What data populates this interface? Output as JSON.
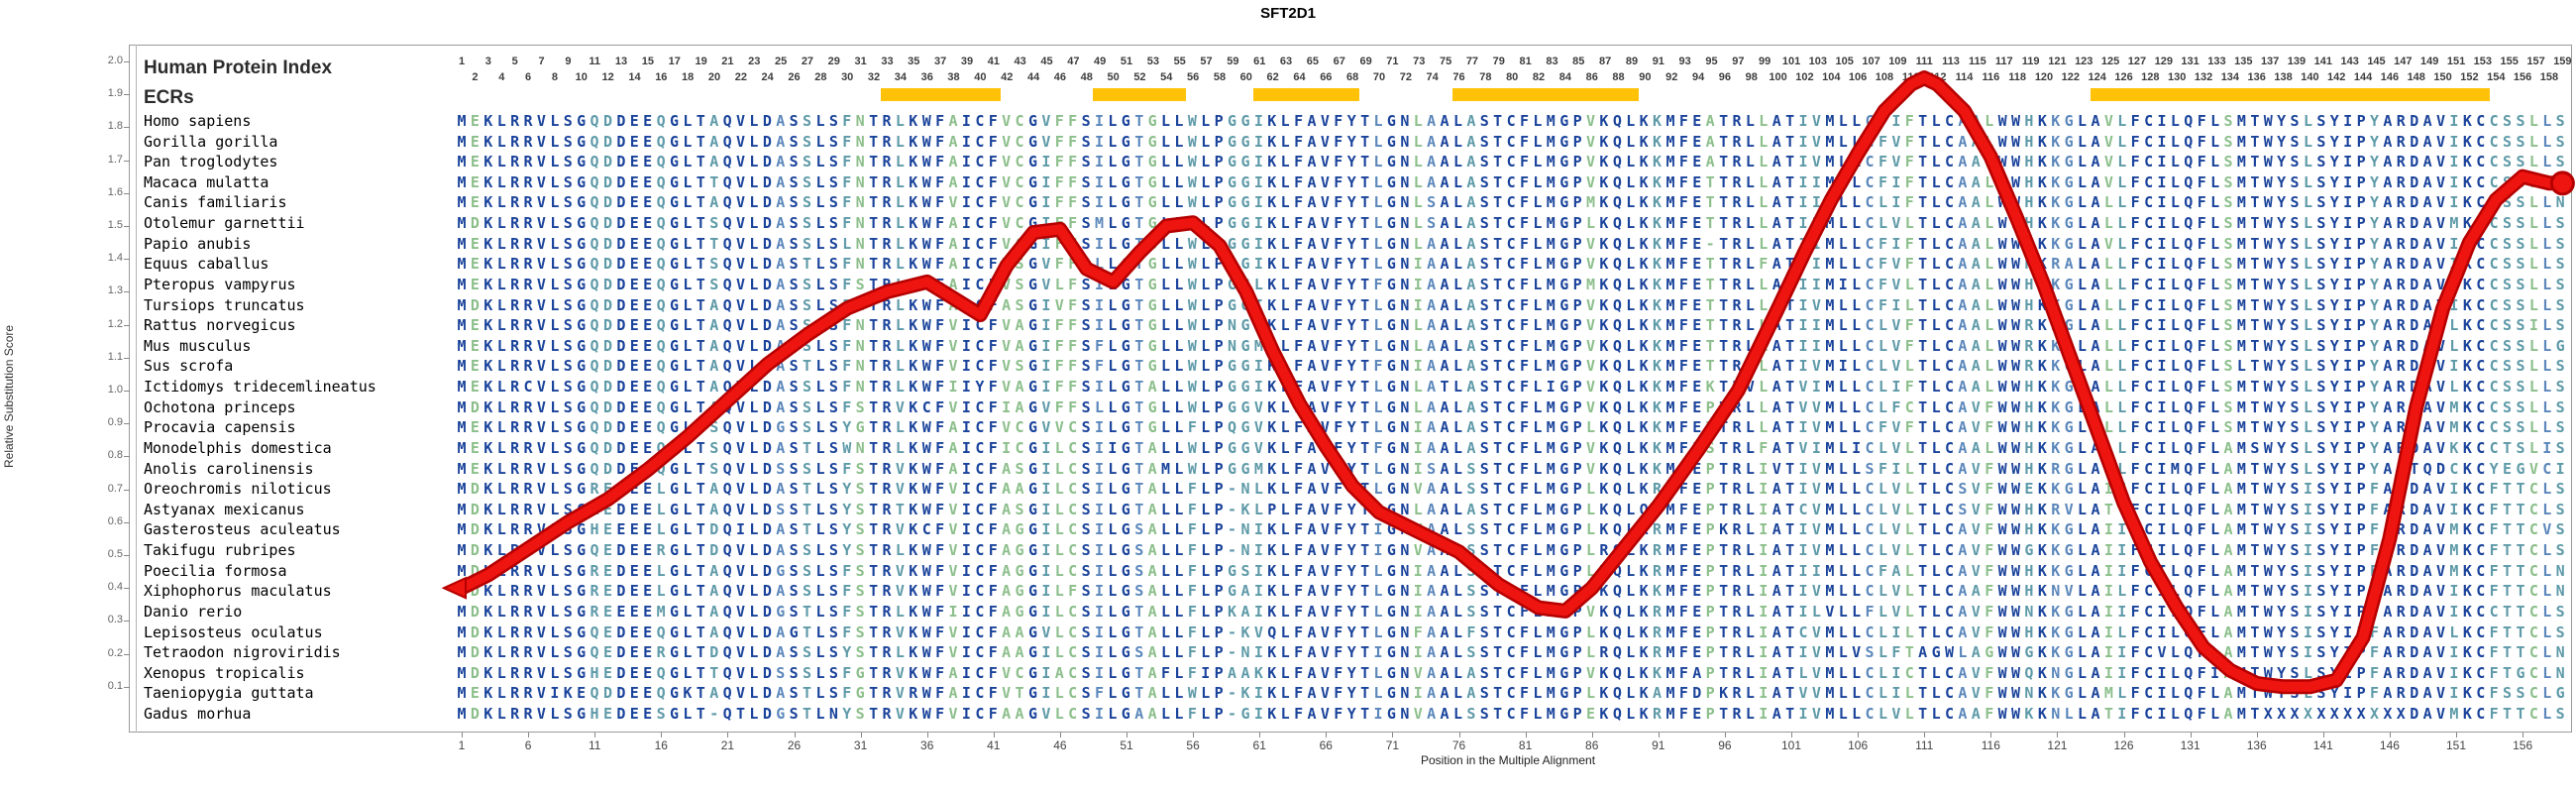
{
  "title": "SFT2D1",
  "header": {
    "protein_index_label": "Human Protein Index",
    "ecrs_label": "ECRs"
  },
  "colors": {
    "conserved_navy": "#1a439b",
    "high_steel": "#5b87bb",
    "moderate_teal": "#5e9aa8",
    "variable_green": "#8cbf8b",
    "ecr_yellow": "#FFC208",
    "curve_red": "#ee1410",
    "curve_dark_red": "#b50000"
  },
  "y_axis": {
    "label": "Relative Substitution Score",
    "ticks": [
      "2.0",
      "1.9",
      "1.8",
      "1.7",
      "1.6",
      "1.5",
      "1.4",
      "1.3",
      "1.2",
      "1.1",
      "1.0",
      "0.9",
      "0.8",
      "0.7",
      "0.6",
      "0.5",
      "0.4",
      "0.3",
      "0.2",
      "0.1"
    ]
  },
  "x_axis": {
    "label": "Position in the Multiple Alignment",
    "ticks": [
      1,
      6,
      11,
      16,
      21,
      26,
      31,
      36,
      41,
      46,
      51,
      56,
      61,
      66,
      71,
      76,
      81,
      86,
      91,
      96,
      101,
      106,
      111,
      116,
      121,
      126,
      131,
      136,
      141,
      146,
      151,
      156
    ]
  },
  "alignment": {
    "num_columns": 159,
    "ecr_bars": [
      [
        33,
        41
      ],
      [
        49,
        55
      ],
      [
        61,
        68
      ],
      [
        76,
        89
      ],
      [
        124,
        153
      ]
    ],
    "species": [
      {
        "name": "Homo sapiens",
        "sequence": "MEKLRRVLSGQDDEEQGLTAQVLDASSLSFNTRLKWFAICFVCGVFFSILGTGLLWLPGGIKLFAVFYTLGNLAALASTCFLMGPVKQLKKMFEATRLLATIVMLLCFIFTLCAALWWHKKGLAVLFCILQFLSMTWYSLSYIPYARDAVIKCCSSLLS"
      },
      {
        "name": "Gorilla gorilla",
        "sequence": "MEKLRRVLSGQDDEEQGLTAQVLDASSLSFNTRLKWFAICFVCGVFFSILGTGLLWLPGGIKLFAVFYTLGNLAALASTCFLMGPVKQLKKMFEATRLLATIVMLLCFVFTLCAALWWHKKGLAVLFCILQFLSMTWYSLSYIPYARDAVIKCCSSLLS"
      },
      {
        "name": "Pan troglodytes",
        "sequence": "MEKLRRVLSGQDDEEQGLTAQVLDASSLSFNTRLKWFAICFVCGIFFSILGTGLLWLPGGIKLFAVFYTLGNLAALASTCFLMGPVKQLKKMFEATRLLATIVMLLCFVFTLCAALWWHKKGLAVLFCILQFLSMTWYSLSYIPYARDAVIKCCSSLLS"
      },
      {
        "name": "Macaca mulatta",
        "sequence": "MEKLRRVLSGQDDEEQGLTTQVLDASSLSFNTRLKWFAICFVCGIFFSILGTGLLWLPGGIKLFAVFYTLGNLAALASTCFLMGPVKQLKKMFETTRLLATIIMLLCFIFTLCAALWWHKKGLAVLFCILQFLSMTWYSLSYIPYARDAVIKCCSSLLS"
      },
      {
        "name": "Canis familiaris",
        "sequence": "MEKLRRVLSGQDDEEQGLTAQVLDASSLSFNTRLKWFVICFVCGIFFSILGTGLLWLPGGIKLFAVFYTLGNLSALASTCFLMGPMKQLKKMFETTRLLATIIMLLCLIFTLCAALWWHKKGLALLFCILQFLSMTWYSLSYIPYARDAVIKCCSSLLN"
      },
      {
        "name": "Otolemur garnettii",
        "sequence": "MDKLRRVLSGQDDEEQGLTSQVLDASSLSFNTRLKWFAICFVCGIFFSMLGTGLLWLPGGIKLFAVFYTLGNLSALASTCFLMGPLKQLKKMFETTRLLATIIMLLCLVLTLCAALWWHKKGLALLFCILQFLSMTWYSLSYIPYARDAVMKCCSSLLS"
      },
      {
        "name": "Papio anubis",
        "sequence": "MEKLRRVLSGQDDEEQGLTTQVLDASSLSLNTRLKWFAICFVCGIFFSILGTGLLWLPGGIKLFAVFYTLGNLAALASTCFLMGPVKQLKKMFE-TRLLATIIMLLCFIFTLCAALWWHKKGLAVLFCILQFLSMTWYSLSYIPYARDAVIKCCSSLLS"
      },
      {
        "name": "Equus caballus",
        "sequence": "MEKLRRVLSGQDDEEQGLTSQVLDASTLSFNTRLKWFAICFVSGVFFSLLGTGLLWLPGGIKLFAVFYTLGNIAALASTCFLMGPVKQLKKMFETTRLFATVIMLLCFVFTLCAALWWHKRALALLFCILQFLSMTWYSLSYIPYARDAVIKCCSSLLS"
      },
      {
        "name": "Pteropus vampyrus",
        "sequence": "MEKLRRVLSGQDDEEQGLTSQVLDASSLSFSTRLRWFAICFVSGVLFSILGTGLLWLPGGLKLFAVFYTFGNIAALASTCFLMGPMKQLKKMFETTRLLATIIMILCFVLTLCAALWWHKKGLALLFCILQFLSMTWYSLSYIPYARDAVIKCCSSLLS"
      },
      {
        "name": "Tursiops truncatus",
        "sequence": "MDKLRRVLSGQDDEEQGLTAQVLDASSLSFNTRLKWFAICFASGIVFSILGTGLLWLPGGIKLFAVFYTLGNIAALASTCFLMGPVKQLKKMFETTRLLATIVMLLCFILTLCAALWWHKKGLALLFCILQFLSMTWYSLSYIPYARDAVIKCCSSLLS"
      },
      {
        "name": "Rattus norvegicus",
        "sequence": "MEKLRRVLSGQDDEEQGLTAQVLDASSLSFNTRLKWFVICFVAGIFFSILGTGLLWLPNGVKLFAVFYTLGNLAALASTCFLMGPVKQLKKMFETTRLLATIIMLLCLVFTLCAALWWRKKGLALLFCILQFLSMTWYSLSYIPYARDAVLKCCSSILS"
      },
      {
        "name": "Mus musculus",
        "sequence": "MEKLRRVLSGQDDEEQGLTAQVLDASSLSFNTRLKWFVICFVAGIFFSFLGTGLLWLPNGMKLFAVFYTLGNLAALASTCFLMGPVKQLKKMFETTRLLATIIMLLCLVFTLCAALWWRKKGLALLFCILQFLSMTWYSLSYIPYARDAVLKCCSSLLG"
      },
      {
        "name": "Sus scrofa",
        "sequence": "MEKLRRVLSGQDDEEQGLTAQVLDASTLSFNTRLKWFVICFVSGIFFSFLGTGLLWLPGGIKLFAVFYTFGNIAALASTCFLMGPVKQLKKMFETTRLLATIVMILCLVLTLCAALWWRKKGLALLFCILQFLSLTWYSLSYIPYARDAVIKCCSSLLS"
      },
      {
        "name": "Ictidomys tridecemlineatus",
        "sequence": "MEKLRCVLSGQDDEEQGLTAQVLDASSLSFNTRLKWFIIYFVAGIFFSILGTALLWLPGGIKLFAVFYTLGNLATLASTCFLIGPVKQLKKMFEKTRVLATVIMLLCLIFTLCAALWWHKKGLALLFCILQFLSMTWYSLSYIPYARDAVLKCCSSLLS"
      },
      {
        "name": "Ochotona princeps",
        "sequence": "MDKLRRVLSGQDDEEQGLTAQVLDASSLSFSTRVKCFVICFIAGVFFSLLGTGLLWLPGGVKLFAVFYTLGNLAALASTCFLMGPVKQLKKMFEPTRLLATVVMLLCLFCTLCAVFWWHKKGLALLFCILQFLSMTWYSLSYIPYARDAVMKCCSSLLS"
      },
      {
        "name": "Procavia capensis",
        "sequence": "MEKLRRVLSGQDDEEQGLTSQVLDGSSLSYGTRLKWFAICFVCGVVCSILGTGLLFLPQGVKLFAVFYTLGNIAALASTCFLMGPLKQLKKMFETTRLLATIVMLLCFVFTLCAVFWWHKKGLALLFCILQFLSMTWYSLSYIPYARDAVMKCCSSLLS"
      },
      {
        "name": "Monodelphis domestica",
        "sequence": "MEKLRRVLSGQDDEEQGLTSQVLDASTLSWNTRLKWFAICFICGILCSIIGTALLWLPGGVKLFAVFYTFGNIAALASTCFLMGPVKQLKKMFESTRLFATVIMLICLVLTLCAALWWHKKGLALLFCILQFLAMSWYSLSYIPYARDAVKKCCTSLIS"
      },
      {
        "name": "Anolis carolinensis",
        "sequence": "MEKLRRVLSGQDDEEQGLTSQVLDSSSLSFSTRVKWFAICFASGILCSILGTAMLWLPGGMKLFAVFYTLGNISALSSTCFLMGPVKQLKKMFEPTRLIVTIVMLLSFILTLCAVFWWHKRGLALLFCIMQFLAMTWYSLSYIPYARTQDCKCYEGVCI"
      },
      {
        "name": "Oreochromis niloticus",
        "sequence": "MDKLRRVLSGREDEELGLTAQVLDASTLSYSTRVKWFVICFAAGILCSILGTALLFLP-NLKLFAVFYTLGNVAALSSTCFLMGPLKQLKRMFEPTRLIATIVMLLCLVLTLCSVFWWEKKGLAIIFCILQFLAMTWYSISYIPFARDAVIKCFTTCLS"
      },
      {
        "name": "Astyanax mexicanus",
        "sequence": "MDKLRRVLSGREDEELGLTAQVLDSSTLSYSTRTKWFVICFASGILCSILGTALLFLP-KLPLFAVFYTLGNLAALASTCFLMGPLKQLQRMFEPTRLIATCVMLLCLVLTLCSVFWWHKRVLATTFCILQFLAMTWYSISYIPFARDAVIKCFTTCLS"
      },
      {
        "name": "Gasterosteus aculeatus",
        "sequence": "MDKLRRVLSGHEEEELGLTDQILDASTLSYSTRVKCFVICFAGGILCSILGSALLFLP-NIKLFAVFYTIGNVAALSSTCFLMGPLKQLKRMFEPKRLIATIVMLLCLVLTLCAVFWWHKKGLAIIFCILQFLAMTWYSISYIPFARDAVMKCFTTCVS"
      },
      {
        "name": "Takifugu rubripes",
        "sequence": "MDKLRRVLSGQEDEERGLTDQVLDASSLSYSTRLKWFVICFAGGILCSILGSALLFLP-NIKLFAVFYTIGNVAALSSTCFLMGPLRQLKRMFEPTRLIATIVMLLCLVLTLCAVFWWGKKGLAIIFCILQFLAMTWYSISYIPFARDAVMKCFTTCLS"
      },
      {
        "name": "Poecilia formosa",
        "sequence": "MDKLRRVLSGREDEELGLTAQVLDGSSLSFSTRVKWFVICFAGGILCSILGSALLFLPGSIKLFAVFYTLGNIAALSSTCFLMGPLKQLKRMFEPTRLIATIIMLLCFALTLCAVFWWHKKGLAIIFCILQFLAMTWYSISYIPFARDAVMKCFTTCLN"
      },
      {
        "name": "Xiphophorus maculatus",
        "sequence": "MDKLRRVLSGREDEELGLTAQVLDASSLSFSTRVKWFVICFAGGILFSILGSALLFLPGAIKLFAVFYTLGNIAALSSTCFLMGPLKQLKKMFEPTRLIATIVMLLCLVLTLCAAFWWHKNVLAILFCILQFLAMTWYSISYIPFARDAVIKCFTTCLN"
      },
      {
        "name": "Danio rerio",
        "sequence": "MDKLRRVLSGREEEEMGLTAQVLDGSTLSFSTRLKWFIICFAGGILCSILGTALLFLPKAIKLFAVFYTLGNIAALSSTCFLMGPVKQLKRMFEPTRLIATILVLLFLVLTLCAVFWWNKKGLAIIFCILQFLAMTWYSISYIPFARDAVIKCCTTCLS"
      },
      {
        "name": "Lepisosteus oculatus",
        "sequence": "MDKLRRVLSGQEDEEQGLTAQVLDAGTLSFSTRVKWFVICFAAGVLCSILGTALLFLP-KVQLFAVFYTLGNFAALFSTCFLMGPLKQLKRMFEPTRLIATCVMLLCLILTLCAVFWWHKKGLAILFCILQFLAMTWYSISYIPFARDAVLKCFTTCLS"
      },
      {
        "name": "Tetraodon nigroviridis",
        "sequence": "MDKLRRVLSGQEDEERGLTDQVLDASSLSYSTRLKWFVICFAAGILCSILGSALLFLP-NIKLFAVFYTIGNIAALSSTCFLMGPLRQLKRMFEPTRLIATIVMLVSLFTAGWLAGWWGKKGLAIIFCVLQFLAMTWYSISYIPFARDAVIKCFTTCLN"
      },
      {
        "name": "Xenopus tropicalis",
        "sequence": "MDKLRRVLSGHEDEEQGLTTQVLDSSSLSFGTRVKWFAICFVCGIACSILGTAFLFIPAAKKLFAVFYTLGNVAALASTCFLMGPVKQLKKMFAPTRLIATLVMLLCLICTLCAVFWWQKNGLAIIFCILQFIAMTWYSLSYIPFARDAVIKCFTGCLN"
      },
      {
        "name": "Taeniopygia guttata",
        "sequence": "MEKLRRVIKEQDDEEQGKTAQVLDASTLSFGTRVRWFAICFVTGILCSFLGTALLWLP-KIKLFAVFYTLGNIAALASTCFLMGPLKQLKAMFDPKRLIATVVMLLCLILTLCAVFWWNKKGLAMLFCILQFLAMTWYSLSYIPFARDAVIKCFSSCLG"
      },
      {
        "name": "Gadus morhua",
        "sequence": "MDKLRRVLSGHEDEESGLT-QTLDGSTLNYSTRVKWFVICFAAGVLCSILGAALLFLP-GIKLFAVFYTIGNVAALSSTCFLMGPEKQLKRMFEPTRLIATIVMLLCLVLTLCAAFWWKKNLLATIFCILQFLAMTXXXXXXXXXXXDAVMKCFTTCLS"
      }
    ]
  },
  "chart_data": {
    "type": "line",
    "title": "SFT2D1",
    "xlabel": "Position in the Multiple Alignment",
    "ylabel": "Relative Substitution Score",
    "ylim": [
      0.0,
      2.0
    ],
    "xlim": [
      1,
      159
    ],
    "grid": false,
    "legend": "none",
    "series": [
      {
        "name": "Relative Substitution Score",
        "points": [
          [
            1,
            0.4
          ],
          [
            3,
            0.44
          ],
          [
            6,
            0.52
          ],
          [
            9,
            0.6
          ],
          [
            12,
            0.67
          ],
          [
            15,
            0.76
          ],
          [
            18,
            0.86
          ],
          [
            21,
            0.97
          ],
          [
            24,
            1.08
          ],
          [
            27,
            1.17
          ],
          [
            30,
            1.25
          ],
          [
            33,
            1.3
          ],
          [
            36,
            1.33
          ],
          [
            38,
            1.28
          ],
          [
            40,
            1.23
          ],
          [
            42,
            1.38
          ],
          [
            44,
            1.48
          ],
          [
            46,
            1.49
          ],
          [
            48,
            1.37
          ],
          [
            50,
            1.33
          ],
          [
            52,
            1.42
          ],
          [
            54,
            1.5
          ],
          [
            56,
            1.51
          ],
          [
            58,
            1.44
          ],
          [
            60,
            1.3
          ],
          [
            62,
            1.12
          ],
          [
            64,
            0.96
          ],
          [
            66,
            0.83
          ],
          [
            68,
            0.71
          ],
          [
            70,
            0.63
          ],
          [
            73,
            0.57
          ],
          [
            76,
            0.51
          ],
          [
            79,
            0.41
          ],
          [
            82,
            0.34
          ],
          [
            84,
            0.33
          ],
          [
            86,
            0.4
          ],
          [
            88,
            0.5
          ],
          [
            91,
            0.65
          ],
          [
            94,
            0.82
          ],
          [
            97,
            1.0
          ],
          [
            100,
            1.25
          ],
          [
            102,
            1.42
          ],
          [
            104,
            1.58
          ],
          [
            106,
            1.72
          ],
          [
            108,
            1.85
          ],
          [
            110,
            1.93
          ],
          [
            111,
            1.95
          ],
          [
            112,
            1.93
          ],
          [
            114,
            1.85
          ],
          [
            116,
            1.71
          ],
          [
            118,
            1.52
          ],
          [
            120,
            1.32
          ],
          [
            122,
            1.1
          ],
          [
            124,
            0.88
          ],
          [
            126,
            0.66
          ],
          [
            128,
            0.48
          ],
          [
            130,
            0.34
          ],
          [
            132,
            0.22
          ],
          [
            134,
            0.15
          ],
          [
            136,
            0.11
          ],
          [
            138,
            0.1
          ],
          [
            140,
            0.1
          ],
          [
            142,
            0.12
          ],
          [
            144,
            0.25
          ],
          [
            146,
            0.55
          ],
          [
            148,
            0.95
          ],
          [
            150,
            1.25
          ],
          [
            152,
            1.45
          ],
          [
            154,
            1.58
          ],
          [
            156,
            1.65
          ],
          [
            158,
            1.63
          ],
          [
            159,
            1.63
          ]
        ]
      }
    ]
  }
}
